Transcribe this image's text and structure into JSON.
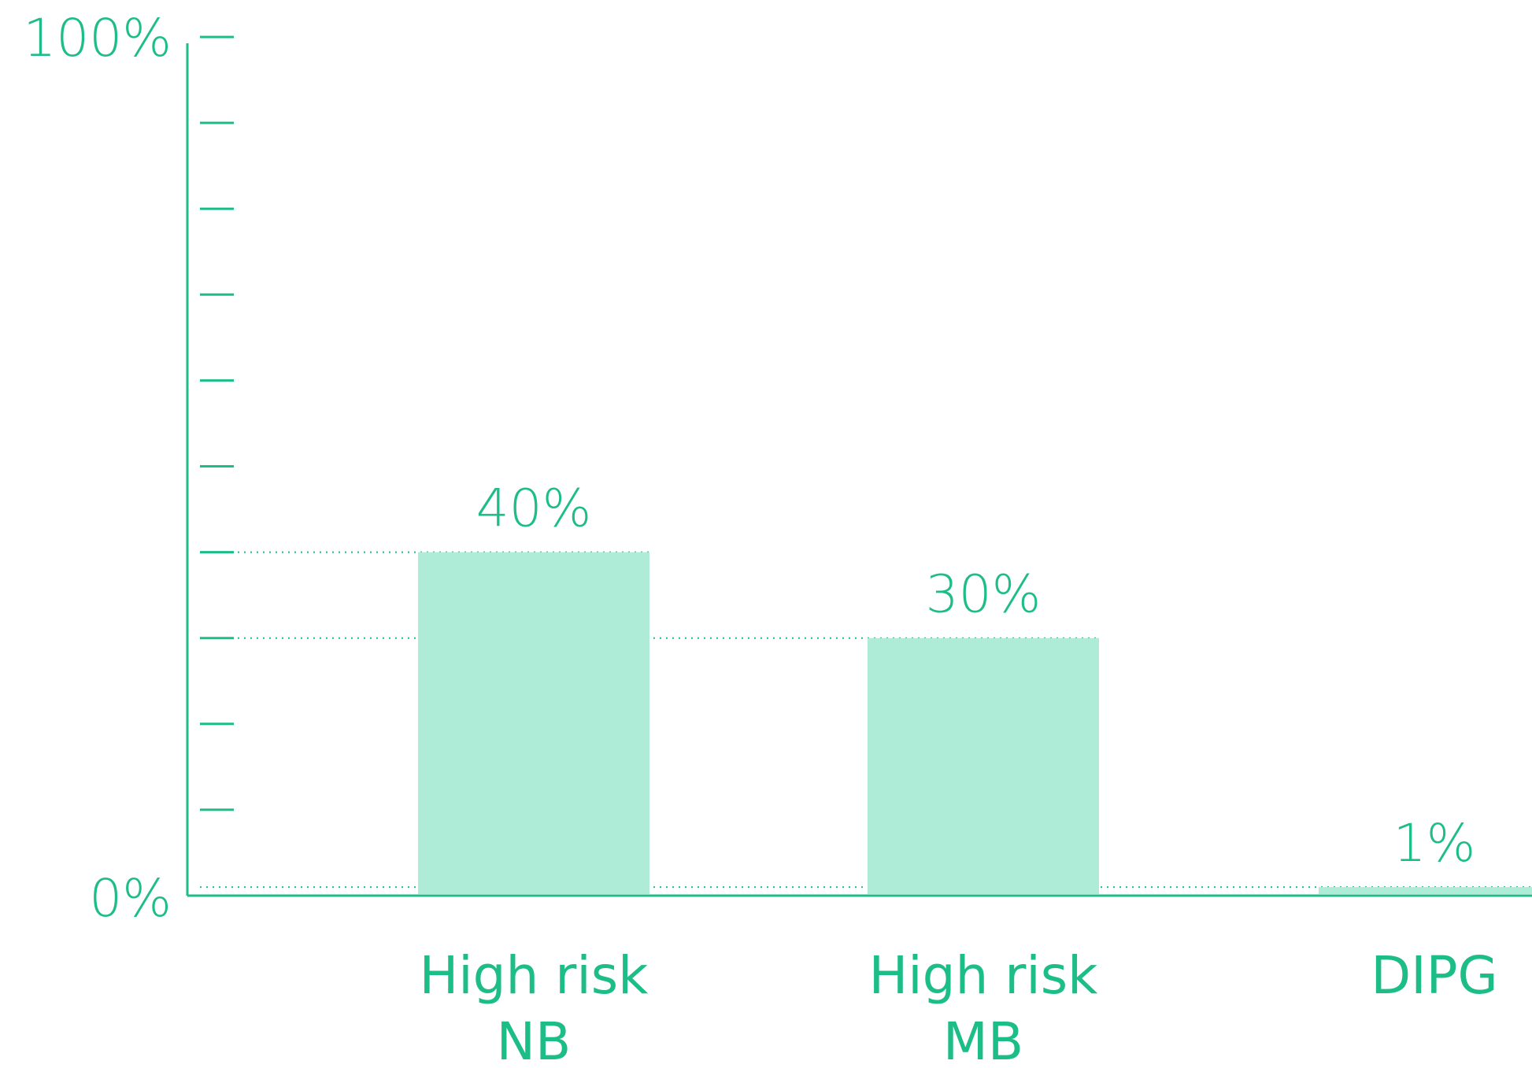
{
  "chart_data": {
    "type": "bar",
    "categories": [
      [
        "High risk",
        "NB"
      ],
      [
        "High risk",
        "MB"
      ],
      [
        "DIPG"
      ]
    ],
    "values": [
      40,
      30,
      1
    ],
    "value_labels": [
      "40%",
      "30%",
      "1%"
    ],
    "ylim": [
      0,
      100
    ],
    "y_tick_step": 10,
    "y_axis_labels": {
      "top": "100%",
      "bottom": "0%"
    },
    "xlabel": "",
    "ylabel": "",
    "grid": false,
    "colors": {
      "axis": "#1dbd87",
      "text": "#1dbd87",
      "bar": "#aeecd8",
      "guide": "#1dbd87"
    }
  }
}
